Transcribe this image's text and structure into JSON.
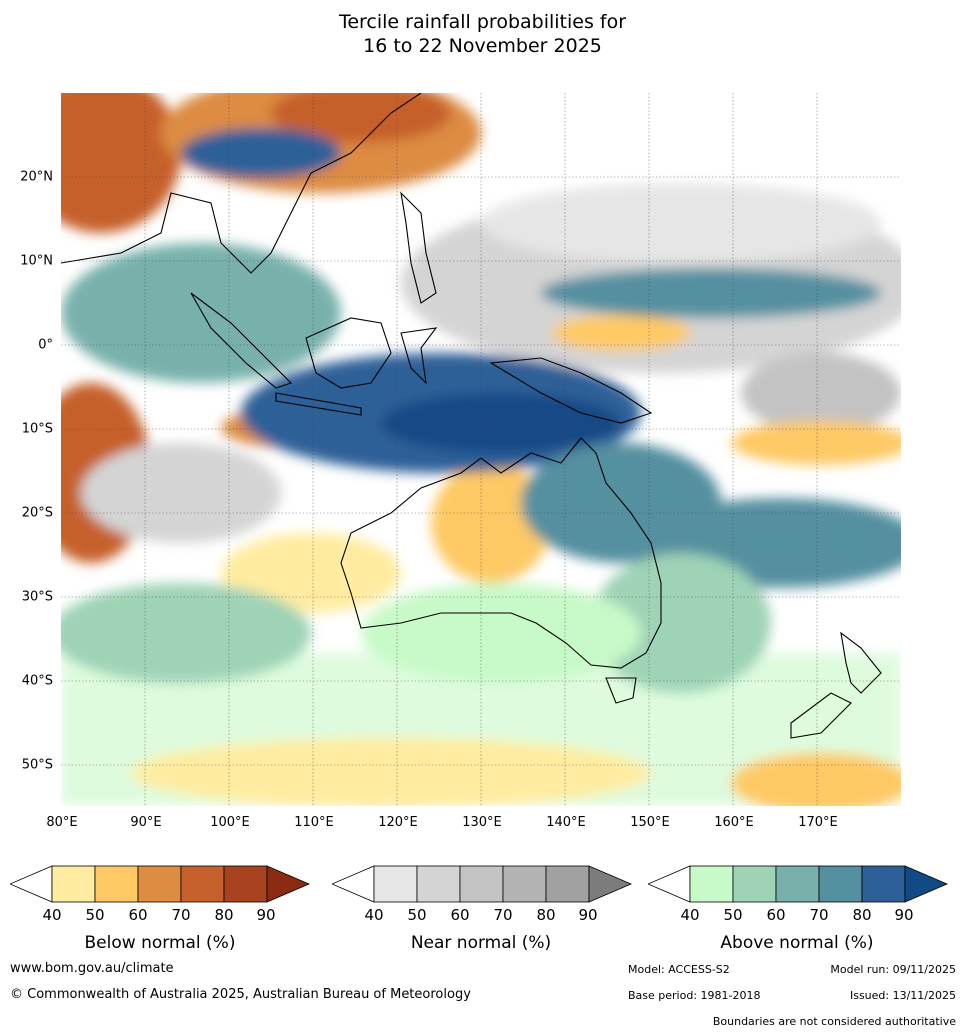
{
  "title": {
    "line1": "Tercile rainfall probabilities for",
    "line2": "16 to 22 November 2025"
  },
  "map": {
    "lat_labels": [
      "20°N",
      "10°N",
      "0°",
      "10°S",
      "20°S",
      "30°S",
      "40°S",
      "50°S"
    ],
    "lon_labels": [
      "80°E",
      "90°E",
      "100°E",
      "110°E",
      "120°E",
      "130°E",
      "140°E",
      "150°E",
      "160°E",
      "170°E"
    ]
  },
  "colorbars": [
    {
      "title": "Below normal (%)",
      "ticks": [
        "40",
        "50",
        "60",
        "70",
        "80",
        "90"
      ],
      "colors": [
        "#ffffff",
        "#ffeca0",
        "#fec965",
        "#dd8c42",
        "#c6602c",
        "#a8431f",
        "#8c2b14"
      ]
    },
    {
      "title": "Near normal (%)",
      "ticks": [
        "40",
        "50",
        "60",
        "70",
        "80",
        "90"
      ],
      "colors": [
        "#ffffff",
        "#e6e6e6",
        "#d4d4d4",
        "#c3c3c3",
        "#b3b3b3",
        "#a1a1a1",
        "#7c7c7c"
      ]
    },
    {
      "title": "Above normal (%)",
      "ticks": [
        "40",
        "50",
        "60",
        "70",
        "80",
        "90"
      ],
      "colors": [
        "#ffffff",
        "#c8f9c8",
        "#9fd3b6",
        "#78b1ac",
        "#5590a0",
        "#2d6098",
        "#124a86"
      ]
    }
  ],
  "footer": {
    "website": "www.bom.gov.au/climate",
    "copyright": "© Commonwealth of Australia 2025, Australian Bureau of Meteorology",
    "model": "Model: ACCESS-S2",
    "model_run": "Model run: 09/11/2025",
    "base_period": "Base period: 1981-2018",
    "issued": "Issued: 13/11/2025",
    "disclaimer": "Boundaries are not considered authoritative"
  }
}
